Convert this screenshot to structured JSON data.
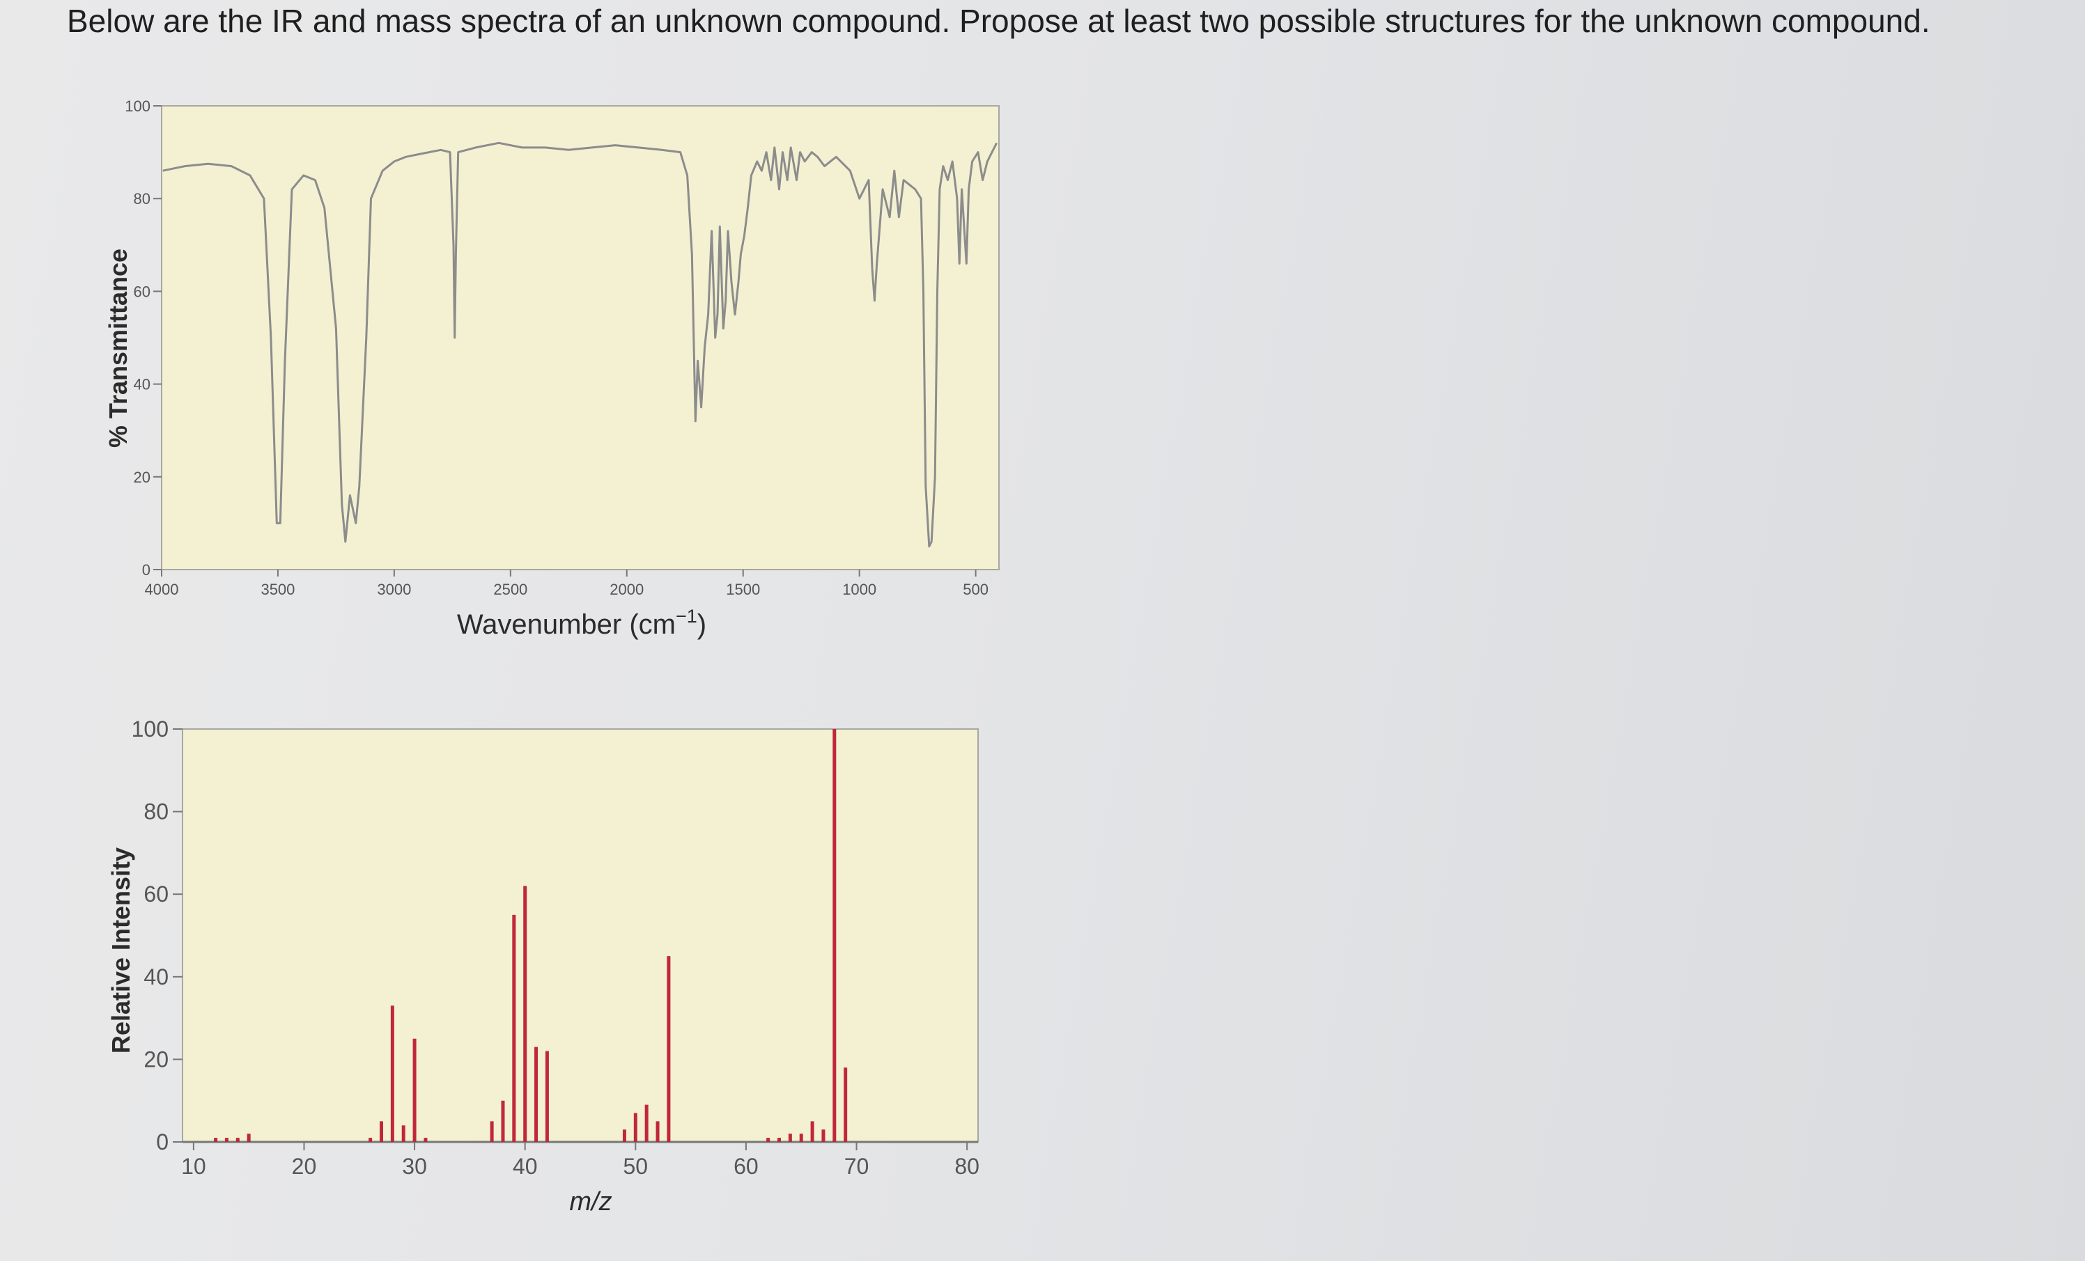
{
  "question": "Below are the IR and mass spectra of an unknown compound. Propose at least two possible structures for the unknown compound.",
  "colors": {
    "plot_background": "#f3f1d2",
    "ir_trace": "#8c8c8c",
    "ms_bars": "#c0283a",
    "axis": "#777777"
  },
  "chart_data": [
    {
      "type": "line",
      "name": "IR spectrum",
      "xlabel": "Wavenumber (cm",
      "xlabel_sup": "−1",
      "xlabel_close": ")",
      "ylabel": "% Transmittance",
      "xlim": [
        4000,
        400
      ],
      "ylim": [
        0,
        100
      ],
      "x_ticks": [
        {
          "value": 4000,
          "label": "4000"
        },
        {
          "value": 3500,
          "label": "3500"
        },
        {
          "value": 3000,
          "label": "3000"
        },
        {
          "value": 2500,
          "label": "2500"
        },
        {
          "value": 2000,
          "label": "2000"
        },
        {
          "value": 1500,
          "label": "1500"
        },
        {
          "value": 1000,
          "label": "1000"
        },
        {
          "value": 500,
          "label": "500"
        }
      ],
      "y_ticks": [
        {
          "value": 0,
          "label": "0"
        },
        {
          "value": 20,
          "label": "20"
        },
        {
          "value": 40,
          "label": "40"
        },
        {
          "value": 60,
          "label": "60"
        },
        {
          "value": 80,
          "label": "80"
        },
        {
          "value": 100,
          "label": "100"
        }
      ],
      "points": [
        [
          3995,
          86
        ],
        [
          3900,
          87
        ],
        [
          3800,
          87.5
        ],
        [
          3700,
          87
        ],
        [
          3620,
          85
        ],
        [
          3560,
          80
        ],
        [
          3530,
          50
        ],
        [
          3505,
          10
        ],
        [
          3490,
          10
        ],
        [
          3470,
          45
        ],
        [
          3440,
          82
        ],
        [
          3390,
          85
        ],
        [
          3340,
          84
        ],
        [
          3300,
          78
        ],
        [
          3250,
          52
        ],
        [
          3225,
          14
        ],
        [
          3210,
          6
        ],
        [
          3190,
          16
        ],
        [
          3165,
          10
        ],
        [
          3150,
          18
        ],
        [
          3120,
          50
        ],
        [
          3100,
          80
        ],
        [
          3050,
          86
        ],
        [
          3000,
          88
        ],
        [
          2950,
          89
        ],
        [
          2900,
          89.5
        ],
        [
          2850,
          90
        ],
        [
          2800,
          90.5
        ],
        [
          2760,
          90
        ],
        [
          2745,
          70
        ],
        [
          2740,
          50
        ],
        [
          2735,
          68
        ],
        [
          2725,
          90
        ],
        [
          2650,
          91
        ],
        [
          2550,
          92
        ],
        [
          2450,
          91
        ],
        [
          2350,
          91
        ],
        [
          2250,
          90.5
        ],
        [
          2150,
          91
        ],
        [
          2050,
          91.5
        ],
        [
          1950,
          91
        ],
        [
          1850,
          90.5
        ],
        [
          1770,
          90
        ],
        [
          1740,
          85
        ],
        [
          1720,
          68
        ],
        [
          1705,
          32
        ],
        [
          1695,
          45
        ],
        [
          1680,
          35
        ],
        [
          1665,
          48
        ],
        [
          1650,
          55
        ],
        [
          1635,
          73
        ],
        [
          1620,
          50
        ],
        [
          1610,
          55
        ],
        [
          1600,
          74
        ],
        [
          1585,
          52
        ],
        [
          1575,
          58
        ],
        [
          1565,
          73
        ],
        [
          1550,
          62
        ],
        [
          1535,
          55
        ],
        [
          1520,
          62
        ],
        [
          1510,
          68
        ],
        [
          1495,
          72
        ],
        [
          1480,
          78
        ],
        [
          1465,
          85
        ],
        [
          1440,
          88
        ],
        [
          1420,
          86
        ],
        [
          1400,
          90
        ],
        [
          1380,
          84
        ],
        [
          1365,
          91
        ],
        [
          1345,
          82
        ],
        [
          1330,
          90
        ],
        [
          1310,
          84
        ],
        [
          1295,
          91
        ],
        [
          1270,
          84
        ],
        [
          1255,
          90
        ],
        [
          1235,
          88
        ],
        [
          1205,
          90
        ],
        [
          1180,
          89
        ],
        [
          1150,
          87
        ],
        [
          1100,
          89
        ],
        [
          1040,
          86
        ],
        [
          1000,
          80
        ],
        [
          960,
          84
        ],
        [
          945,
          65
        ],
        [
          935,
          58
        ],
        [
          925,
          66
        ],
        [
          900,
          82
        ],
        [
          870,
          76
        ],
        [
          850,
          86
        ],
        [
          830,
          76
        ],
        [
          810,
          84
        ],
        [
          760,
          82
        ],
        [
          735,
          80
        ],
        [
          725,
          60
        ],
        [
          715,
          18
        ],
        [
          700,
          5
        ],
        [
          690,
          6
        ],
        [
          675,
          20
        ],
        [
          665,
          60
        ],
        [
          655,
          82
        ],
        [
          640,
          87
        ],
        [
          620,
          84
        ],
        [
          600,
          88
        ],
        [
          580,
          80
        ],
        [
          570,
          66
        ],
        [
          560,
          82
        ],
        [
          540,
          66
        ],
        [
          530,
          82
        ],
        [
          515,
          88
        ],
        [
          490,
          90
        ],
        [
          470,
          84
        ],
        [
          450,
          88
        ],
        [
          430,
          90
        ],
        [
          410,
          92
        ]
      ]
    },
    {
      "type": "bar",
      "name": "Mass spectrum",
      "xlabel": "m/z",
      "ylabel": "Relative Intensity",
      "xlim": [
        9,
        81
      ],
      "ylim": [
        0,
        100
      ],
      "x_ticks": [
        {
          "value": 10,
          "label": "10"
        },
        {
          "value": 20,
          "label": "20"
        },
        {
          "value": 30,
          "label": "30"
        },
        {
          "value": 40,
          "label": "40"
        },
        {
          "value": 50,
          "label": "50"
        },
        {
          "value": 60,
          "label": "60"
        },
        {
          "value": 70,
          "label": "70"
        },
        {
          "value": 80,
          "label": "80"
        }
      ],
      "y_ticks": [
        {
          "value": 0,
          "label": "0"
        },
        {
          "value": 20,
          "label": "20"
        },
        {
          "value": 40,
          "label": "40"
        },
        {
          "value": 60,
          "label": "60"
        },
        {
          "value": 80,
          "label": "80"
        },
        {
          "value": 100,
          "label": "100"
        }
      ],
      "bars": [
        {
          "x": 12,
          "y": 1
        },
        {
          "x": 13,
          "y": 1
        },
        {
          "x": 14,
          "y": 1
        },
        {
          "x": 15,
          "y": 2
        },
        {
          "x": 26,
          "y": 1
        },
        {
          "x": 27,
          "y": 5
        },
        {
          "x": 28,
          "y": 33
        },
        {
          "x": 29,
          "y": 4
        },
        {
          "x": 30,
          "y": 25
        },
        {
          "x": 31,
          "y": 1
        },
        {
          "x": 37,
          "y": 5
        },
        {
          "x": 38,
          "y": 10
        },
        {
          "x": 39,
          "y": 55
        },
        {
          "x": 40,
          "y": 62
        },
        {
          "x": 41,
          "y": 23
        },
        {
          "x": 42,
          "y": 22
        },
        {
          "x": 49,
          "y": 3
        },
        {
          "x": 50,
          "y": 7
        },
        {
          "x": 51,
          "y": 9
        },
        {
          "x": 52,
          "y": 5
        },
        {
          "x": 53,
          "y": 45
        },
        {
          "x": 62,
          "y": 1
        },
        {
          "x": 63,
          "y": 1
        },
        {
          "x": 64,
          "y": 2
        },
        {
          "x": 65,
          "y": 2
        },
        {
          "x": 66,
          "y": 5
        },
        {
          "x": 67,
          "y": 3
        },
        {
          "x": 68,
          "y": 100
        },
        {
          "x": 69,
          "y": 18
        }
      ]
    }
  ]
}
